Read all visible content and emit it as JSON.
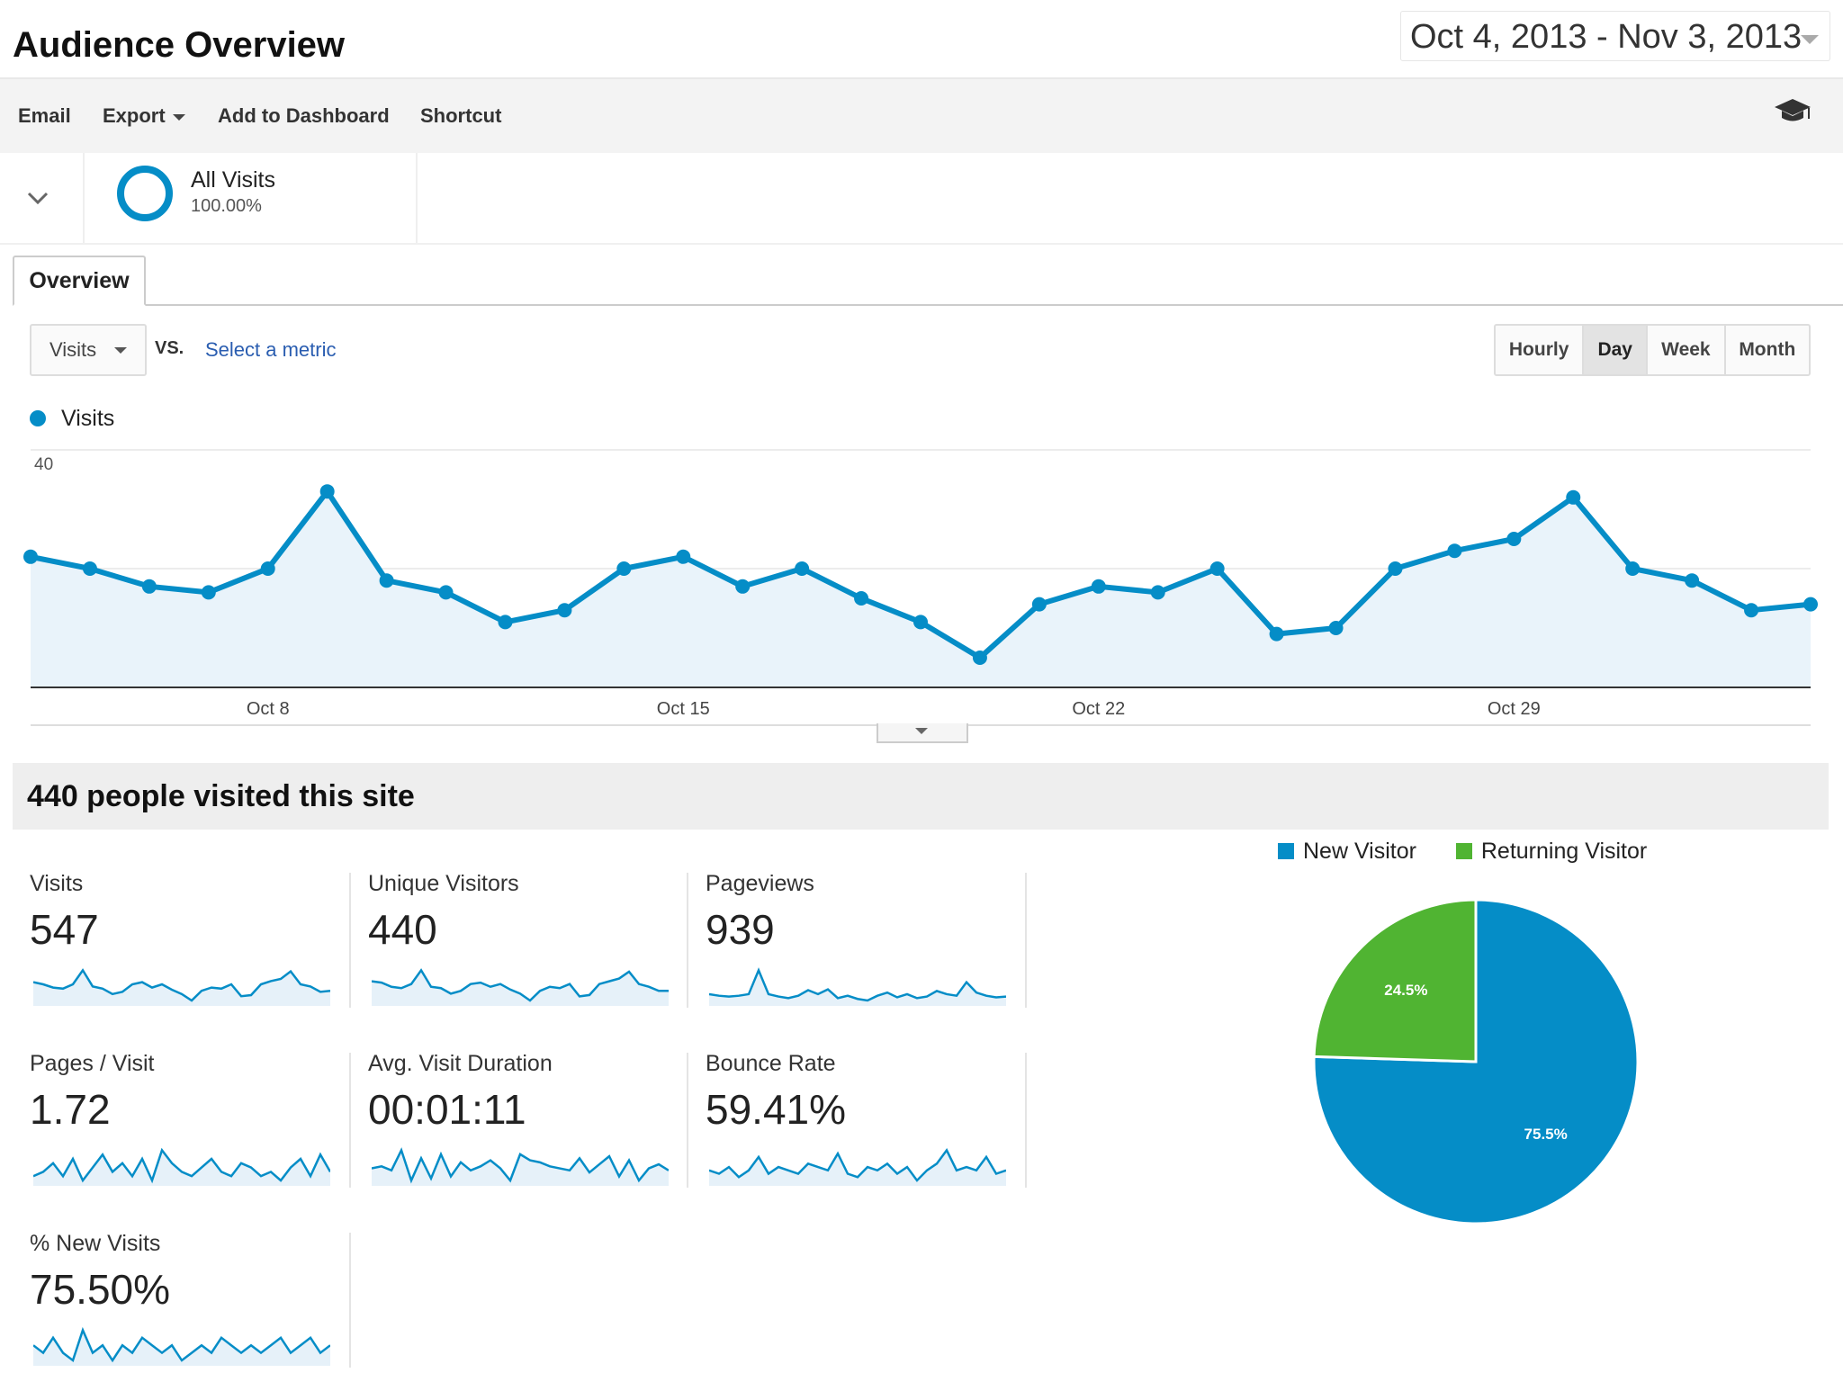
{
  "header": {
    "title": "Audience Overview",
    "date_range": "Oct 4, 2013 - Nov 3, 2013"
  },
  "toolbar": {
    "email": "Email",
    "export": "Export",
    "add_to_dashboard": "Add to Dashboard",
    "shortcut": "Shortcut",
    "help_icon": "graduation-cap-icon"
  },
  "segment": {
    "name": "All Visits",
    "percent": "100.00%"
  },
  "tabs": {
    "overview": "Overview"
  },
  "controls": {
    "metric": "Visits",
    "vs": "VS.",
    "select_metric": "Select a metric",
    "granularity": [
      "Hourly",
      "Day",
      "Week",
      "Month"
    ],
    "active_granularity": "Day"
  },
  "colors": {
    "accent": "#058dc7",
    "returning": "#50b432"
  },
  "chart_data": {
    "type": "area",
    "series": [
      {
        "name": "Visits",
        "values": [
          22,
          20,
          17,
          16,
          20,
          33,
          18,
          16,
          11,
          13,
          20,
          22,
          17,
          20,
          15,
          11,
          5,
          14,
          17,
          16,
          20,
          9,
          10,
          20,
          23,
          25,
          32,
          20,
          18,
          13,
          14
        ]
      }
    ],
    "ylim": [
      0,
      40
    ],
    "yticks": [
      "40",
      "20"
    ],
    "xticks": [
      {
        "label": "Oct 8",
        "index": 4
      },
      {
        "label": "Oct 15",
        "index": 11
      },
      {
        "label": "Oct 22",
        "index": 18
      },
      {
        "label": "Oct 29",
        "index": 25
      }
    ],
    "legend": "top-left",
    "grid": true
  },
  "summary": {
    "title": "440 people visited this site"
  },
  "metrics": [
    {
      "label": "Visits",
      "value": "547",
      "spark": [
        22,
        20,
        17,
        16,
        20,
        33,
        18,
        16,
        11,
        13,
        20,
        22,
        17,
        20,
        15,
        11,
        5,
        14,
        17,
        16,
        20,
        9,
        10,
        20,
        23,
        25,
        32,
        20,
        18,
        13,
        14
      ]
    },
    {
      "label": "Unique Visitors",
      "value": "440",
      "spark": [
        19,
        18,
        15,
        14,
        17,
        27,
        15,
        14,
        10,
        12,
        17,
        18,
        15,
        17,
        13,
        10,
        5,
        12,
        15,
        14,
        17,
        8,
        9,
        17,
        19,
        21,
        26,
        17,
        15,
        12,
        12
      ]
    },
    {
      "label": "Pageviews",
      "value": "939",
      "spark": [
        20,
        18,
        17,
        18,
        20,
        50,
        20,
        17,
        15,
        18,
        25,
        20,
        26,
        15,
        18,
        14,
        12,
        18,
        22,
        16,
        20,
        15,
        17,
        24,
        20,
        18,
        35,
        22,
        18,
        16,
        17
      ]
    },
    {
      "label": "Pages / Visit",
      "value": "1.72",
      "spark": [
        20,
        22,
        26,
        20,
        28,
        18,
        24,
        30,
        22,
        26,
        20,
        28,
        18,
        32,
        26,
        22,
        20,
        24,
        28,
        22,
        20,
        26,
        24,
        20,
        22,
        18,
        24,
        28,
        20,
        30,
        22
      ]
    },
    {
      "label": "Avg. Visit Duration",
      "value": "00:01:11",
      "spark": [
        22,
        24,
        20,
        40,
        10,
        32,
        12,
        36,
        14,
        28,
        20,
        24,
        30,
        22,
        10,
        36,
        30,
        28,
        24,
        22,
        20,
        32,
        18,
        26,
        34,
        14,
        30,
        10,
        22,
        26,
        20
      ]
    },
    {
      "label": "Bounce Rate",
      "value": "59.41%",
      "spark": [
        22,
        20,
        24,
        18,
        22,
        30,
        20,
        24,
        22,
        20,
        26,
        24,
        22,
        32,
        20,
        18,
        24,
        22,
        26,
        20,
        24,
        16,
        22,
        26,
        34,
        22,
        24,
        22,
        30,
        20,
        22
      ]
    },
    {
      "label": "% New Visits",
      "value": "75.50%",
      "spark": [
        24,
        22,
        26,
        22,
        20,
        28,
        22,
        24,
        20,
        24,
        22,
        26,
        24,
        22,
        24,
        20,
        22,
        24,
        22,
        26,
        24,
        22,
        24,
        22,
        24,
        26,
        22,
        24,
        26,
        22,
        24
      ]
    }
  ],
  "pie": {
    "legend": [
      "New Visitor",
      "Returning Visitor"
    ],
    "slices": [
      {
        "name": "New Visitor",
        "value": 75.5,
        "label": "75.5%",
        "color": "#058dc7"
      },
      {
        "name": "Returning Visitor",
        "value": 24.5,
        "label": "24.5%",
        "color": "#50b432"
      }
    ]
  }
}
